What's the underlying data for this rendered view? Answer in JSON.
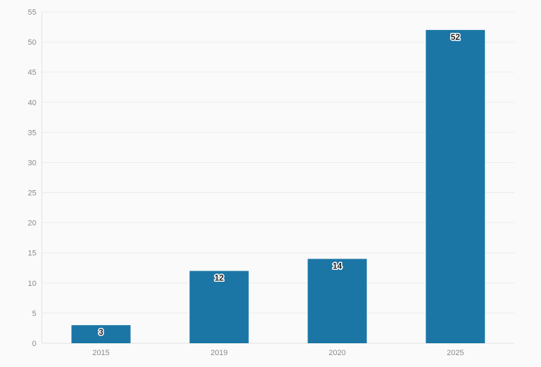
{
  "chart_data": {
    "type": "bar",
    "title": "",
    "xlabel": "",
    "ylabel": "",
    "categories": [
      "2015",
      "2019",
      "2020",
      "2025"
    ],
    "values": [
      3,
      12,
      14,
      52
    ],
    "ylim": [
      0,
      55
    ],
    "yticks": [
      0,
      5,
      10,
      15,
      20,
      25,
      30,
      35,
      40,
      45,
      50,
      55
    ],
    "grid": true,
    "legend": "none",
    "bar_color": "#1b76a5",
    "show_data_labels": true
  }
}
